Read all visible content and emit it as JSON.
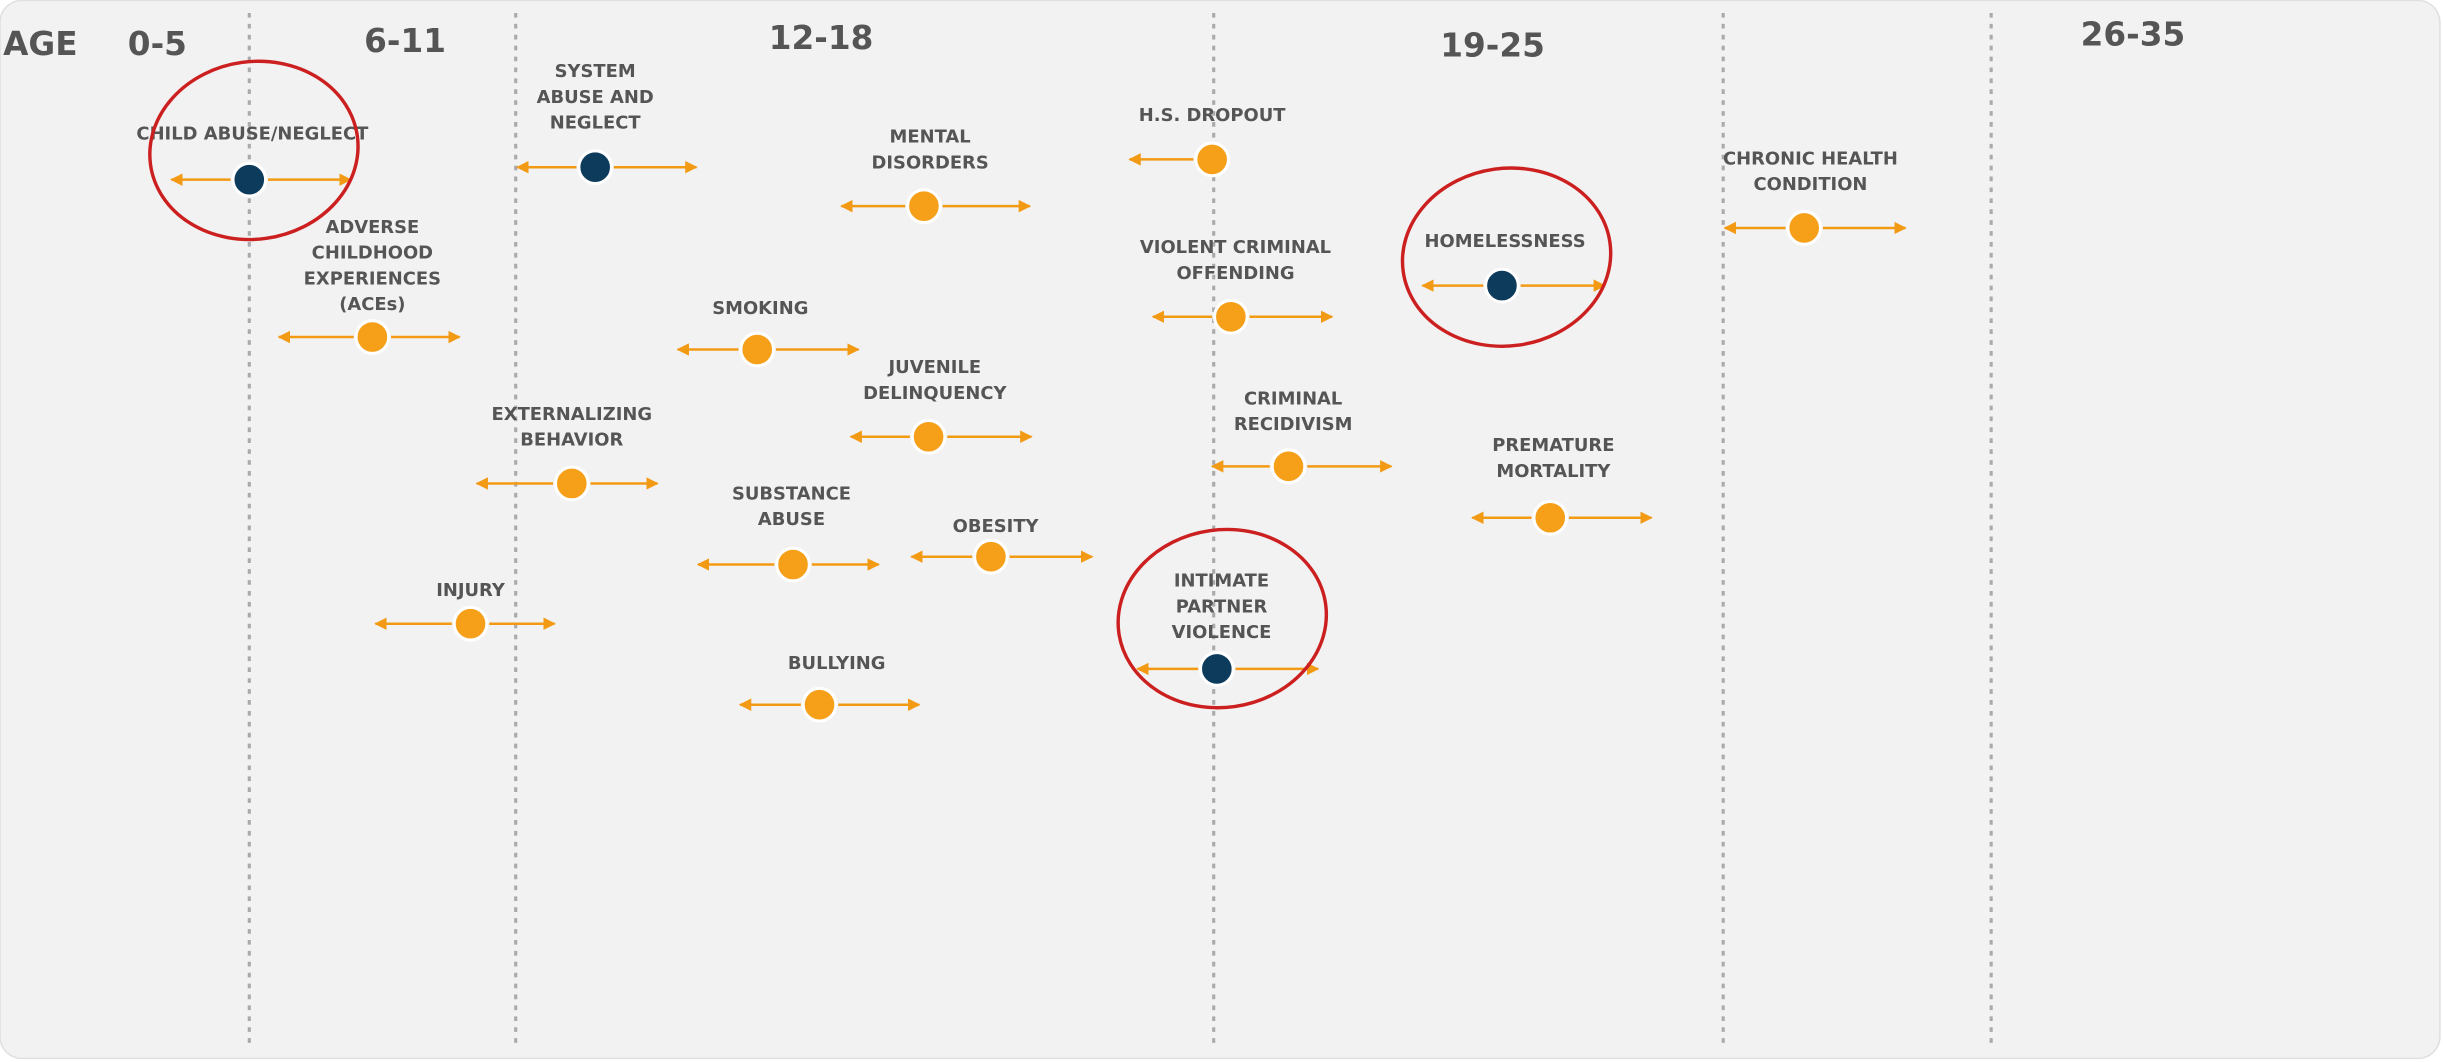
{
  "header": {
    "age_label": "AGE",
    "age_groups": [
      "0-5",
      "6-11",
      "12-18",
      "19-25",
      "26-35"
    ]
  },
  "items": [
    {
      "label_lines": [
        "CHILD ABUSE/NEGLECT"
      ],
      "highlighted": true
    },
    {
      "label_lines": [
        "SYSTEM",
        "ABUSE AND",
        "NEGLECT"
      ],
      "highlighted": false,
      "dot_color": "#0d3b5c"
    },
    {
      "label_lines": [
        "ADVERSE",
        "CHILDHOOD",
        "EXPERIENCES",
        "(ACEs)"
      ],
      "highlighted": false
    },
    {
      "label_lines": [
        "MENTAL",
        "DISORDERS"
      ],
      "highlighted": false
    },
    {
      "label_lines": [
        "H.S. DROPOUT"
      ],
      "highlighted": false
    },
    {
      "label_lines": [
        "VIOLENT CRIMINAL",
        "OFFENDING"
      ],
      "highlighted": false
    },
    {
      "label_lines": [
        "HOMELESSNESS"
      ],
      "highlighted": true
    },
    {
      "label_lines": [
        "CHRONIC HEALTH",
        "CONDITION"
      ],
      "highlighted": false
    },
    {
      "label_lines": [
        "SMOKING"
      ],
      "highlighted": false
    },
    {
      "label_lines": [
        "JUVENILE",
        "DELINQUENCY"
      ],
      "highlighted": false
    },
    {
      "label_lines": [
        "CRIMINAL",
        "RECIDIVISM"
      ],
      "highlighted": false
    },
    {
      "label_lines": [
        "EXTERNALIZING",
        "BEHAVIOR"
      ],
      "highlighted": false
    },
    {
      "label_lines": [
        "PREMATURE",
        "MORTALITY"
      ],
      "highlighted": false
    },
    {
      "label_lines": [
        "SUBSTANCE",
        "ABUSE"
      ],
      "highlighted": false
    },
    {
      "label_lines": [
        "OBESITY"
      ],
      "highlighted": false
    },
    {
      "label_lines": [
        "INTIMATE",
        "PARTNER",
        "VIOLENCE"
      ],
      "highlighted": true
    },
    {
      "label_lines": [
        "INJURY"
      ],
      "highlighted": false
    },
    {
      "label_lines": [
        "BULLYING"
      ],
      "highlighted": false
    }
  ]
}
